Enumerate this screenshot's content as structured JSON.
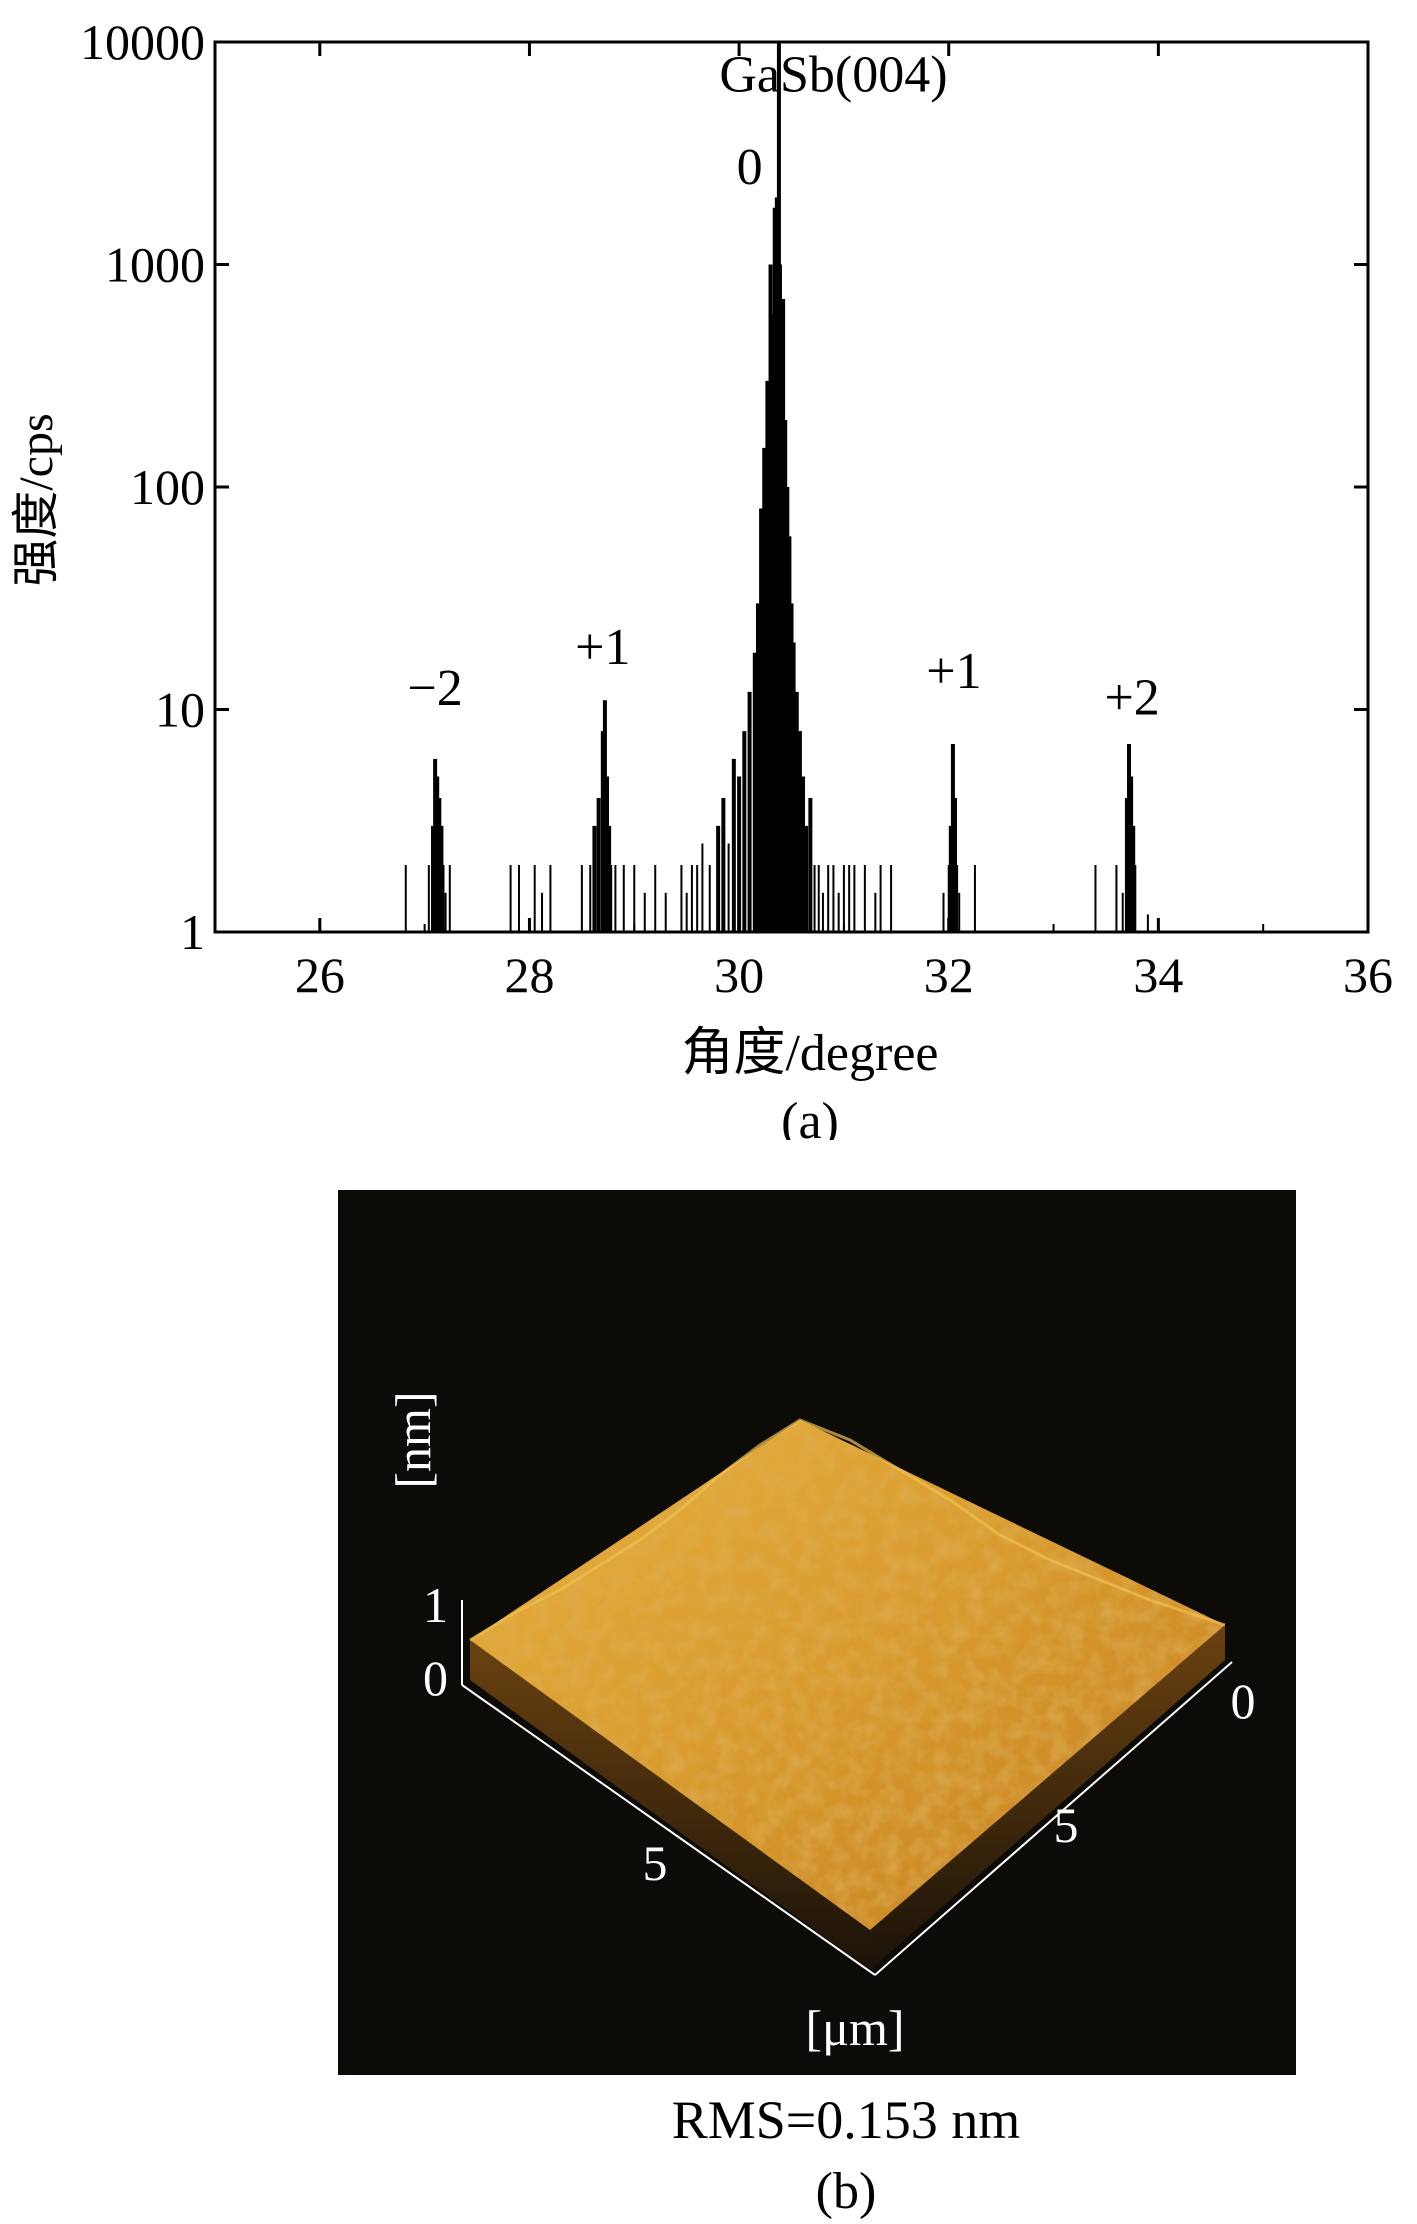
{
  "figure": {
    "caption_a": "(a)",
    "caption_b": "(b)",
    "rms_text": "RMS=0.153 nm"
  },
  "chart_data": {
    "type": "bar",
    "title": "",
    "xlabel": "角度/degree",
    "ylabel": "强度/cps",
    "xlim": [
      25,
      36
    ],
    "ylim": [
      1,
      10000
    ],
    "yscale": "log",
    "grid": false,
    "x_ticks": [
      26,
      28,
      30,
      32,
      34,
      36
    ],
    "x_tick_labels": [
      "26",
      "28",
      "30",
      "32",
      "34",
      "36"
    ],
    "y_ticks": [
      1,
      10,
      100,
      1000,
      10000
    ],
    "y_tick_labels": [
      "1",
      "10",
      "100",
      "1000",
      "10000"
    ],
    "annotations": [
      {
        "text": "GaSb(004)",
        "x": 30.9,
        "y": 6000
      },
      {
        "text": "0",
        "x": 30.1,
        "y": 2300
      },
      {
        "text": "−2",
        "x": 27.1,
        "y": 10.5
      },
      {
        "text": "+1",
        "x": 28.7,
        "y": 16
      },
      {
        "text": "+1",
        "x": 32.05,
        "y": 12.5
      },
      {
        "text": "+2",
        "x": 33.75,
        "y": 9.5
      }
    ],
    "series": [
      {
        "x": [
          25.0,
          25.5,
          26.0,
          26.5,
          26.82,
          26.96,
          27.04,
          27.08,
          27.1,
          27.12,
          27.14,
          27.16,
          27.18,
          27.2,
          27.24,
          27.5,
          27.82,
          27.9,
          28.05,
          28.12,
          28.2,
          28.5,
          28.58,
          28.62,
          28.66,
          28.7,
          28.72,
          28.74,
          28.76,
          28.78,
          28.82,
          28.9,
          29.0,
          29.1,
          29.2,
          29.3,
          29.45,
          29.5,
          29.55,
          29.6,
          29.65,
          29.72,
          29.8,
          29.85,
          29.9,
          29.95,
          30.0,
          30.05,
          30.1,
          30.15,
          30.18,
          30.21,
          30.24,
          30.27,
          30.3,
          30.32,
          30.34,
          30.36,
          30.38,
          30.39,
          30.41,
          30.42,
          30.44,
          30.46,
          30.48,
          30.5,
          30.52,
          30.55,
          30.58,
          30.61,
          30.64,
          30.68,
          30.72,
          30.76,
          30.8,
          30.85,
          30.9,
          30.95,
          31.0,
          31.05,
          31.1,
          31.2,
          31.3,
          31.35,
          31.45,
          31.6,
          31.75,
          31.95,
          32.0,
          32.02,
          32.04,
          32.06,
          32.08,
          32.1,
          32.25,
          32.4,
          32.7,
          33.0,
          33.4,
          33.6,
          33.66,
          33.7,
          33.72,
          33.74,
          33.76,
          33.78,
          33.9,
          34.2,
          34.5,
          35.0,
          35.5,
          36.0
        ],
        "values": [
          1,
          1,
          1.1,
          1,
          2,
          1,
          2,
          3,
          6,
          5,
          4,
          3,
          2,
          1.5,
          2,
          1,
          2,
          2,
          2,
          1.5,
          2,
          2,
          2,
          3,
          4,
          8,
          11,
          5,
          3,
          2,
          2,
          2,
          2,
          1.5,
          2,
          1.5,
          2,
          1.5,
          2,
          2,
          2.5,
          2,
          3,
          4,
          2.5,
          6,
          5,
          8,
          12,
          18,
          30,
          80,
          150,
          300,
          1000,
          600,
          1800,
          2000,
          10000,
          1000,
          300,
          700,
          200,
          100,
          60,
          30,
          20,
          12,
          8,
          5,
          3,
          4,
          2,
          2,
          1.5,
          2,
          2,
          1.5,
          2,
          2,
          2,
          2,
          1.5,
          2,
          2,
          1,
          1,
          1.5,
          2,
          3,
          7,
          4,
          2,
          1.5,
          2,
          1,
          1,
          1,
          2,
          2,
          1.5,
          4,
          7,
          5,
          3,
          2,
          1.2,
          1,
          1,
          1,
          1,
          1
        ]
      }
    ]
  },
  "afm": {
    "z_unit": "[nm]",
    "z_ticks": [
      "1",
      "0"
    ],
    "xy_unit": "[μm]",
    "x_ticks": [
      "0",
      "5"
    ],
    "y_ticks": [
      "0",
      "5"
    ]
  }
}
